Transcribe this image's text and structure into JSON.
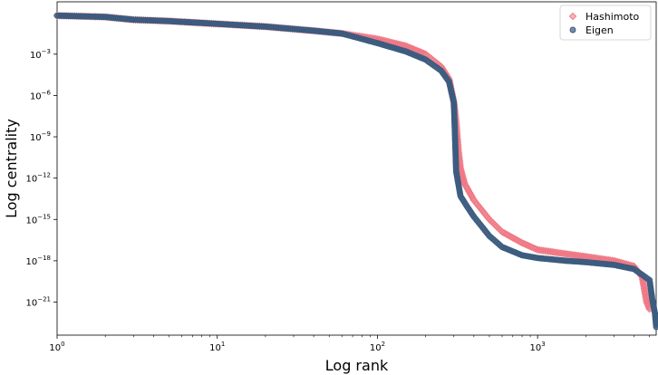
{
  "chart_data": {
    "type": "scatter",
    "title": "",
    "xlabel": "Log rank",
    "ylabel": "Log centrality",
    "xscale": "log",
    "yscale": "log",
    "xlim": [
      1,
      5500
    ],
    "ylim_log10": [
      -23.4,
      0.8
    ],
    "grid": false,
    "legend_position": "top-right",
    "x_ticks": [
      {
        "value": 1,
        "exp": "0"
      },
      {
        "value": 10,
        "exp": "1"
      },
      {
        "value": 100,
        "exp": "2"
      },
      {
        "value": 1000,
        "exp": "3"
      }
    ],
    "y_ticks": [
      {
        "log10": -3,
        "exp": "−3"
      },
      {
        "log10": -6,
        "exp": "−6"
      },
      {
        "log10": -9,
        "exp": "−9"
      },
      {
        "log10": -12,
        "exp": "−12"
      },
      {
        "log10": -15,
        "exp": "−15"
      },
      {
        "log10": -18,
        "exp": "−18"
      },
      {
        "log10": -21,
        "exp": "−21"
      }
    ],
    "tick_base": "10",
    "series": [
      {
        "name": "Hashimoto",
        "marker": "diamond",
        "color": "#ef7783",
        "points_log10": [
          [
            1,
            -0.2
          ],
          [
            2,
            -0.3
          ],
          [
            3,
            -0.5
          ],
          [
            5,
            -0.6
          ],
          [
            10,
            -0.8
          ],
          [
            20,
            -1.0
          ],
          [
            40,
            -1.3
          ],
          [
            60,
            -1.5
          ],
          [
            100,
            -1.9
          ],
          [
            150,
            -2.4
          ],
          [
            200,
            -3.0
          ],
          [
            250,
            -3.9
          ],
          [
            280,
            -4.8
          ],
          [
            300,
            -6.5
          ],
          [
            310,
            -8.0
          ],
          [
            320,
            -10.0
          ],
          [
            330,
            -11.3
          ],
          [
            350,
            -12.4
          ],
          [
            400,
            -13.6
          ],
          [
            500,
            -15.0
          ],
          [
            600,
            -15.9
          ],
          [
            800,
            -16.7
          ],
          [
            1000,
            -17.2
          ],
          [
            1500,
            -17.5
          ],
          [
            2000,
            -17.7
          ],
          [
            3000,
            -18.0
          ],
          [
            4000,
            -18.4
          ],
          [
            4500,
            -19.2
          ],
          [
            4800,
            -21.0
          ],
          [
            5000,
            -21.5
          ]
        ]
      },
      {
        "name": "Eigen",
        "marker": "circle",
        "color": "#3b5b7f",
        "points_log10": [
          [
            1,
            -0.2
          ],
          [
            2,
            -0.3
          ],
          [
            3,
            -0.5
          ],
          [
            5,
            -0.6
          ],
          [
            10,
            -0.8
          ],
          [
            20,
            -1.0
          ],
          [
            40,
            -1.3
          ],
          [
            60,
            -1.5
          ],
          [
            100,
            -2.2
          ],
          [
            150,
            -2.8
          ],
          [
            200,
            -3.4
          ],
          [
            250,
            -4.2
          ],
          [
            280,
            -5.0
          ],
          [
            300,
            -6.5
          ],
          [
            305,
            -9.0
          ],
          [
            310,
            -11.5
          ],
          [
            330,
            -13.3
          ],
          [
            360,
            -14.0
          ],
          [
            400,
            -14.8
          ],
          [
            500,
            -16.2
          ],
          [
            600,
            -17.0
          ],
          [
            800,
            -17.6
          ],
          [
            1000,
            -17.8
          ],
          [
            1500,
            -18.0
          ],
          [
            2000,
            -18.1
          ],
          [
            3000,
            -18.3
          ],
          [
            4000,
            -18.6
          ],
          [
            5000,
            -19.4
          ],
          [
            5200,
            -20.8
          ],
          [
            5400,
            -21.8
          ],
          [
            5500,
            -22.8
          ]
        ]
      }
    ]
  }
}
